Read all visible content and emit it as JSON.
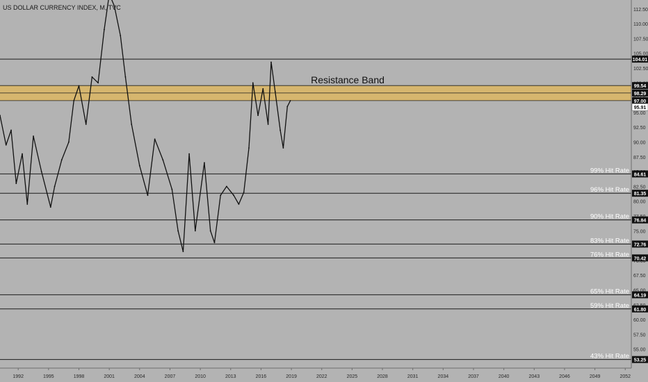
{
  "header": {
    "title": "US DOLLAR CURRENCY INDEX, M, TVC"
  },
  "colors": {
    "background": "#b3b3b3",
    "price": "#111111",
    "band_fill": "#d8b66a",
    "level_line": "#1c1c1c",
    "label_text": "#ffffff",
    "tag_bg": "#111111",
    "tag_text": "#ffffff"
  },
  "chart_data": {
    "type": "line",
    "title": "US DOLLAR CURRENCY INDEX, M, TVC",
    "xlabel": "",
    "ylabel": "",
    "xlim": [
      1990.2,
      2052.6
    ],
    "ylim": [
      51.8,
      114.0
    ],
    "x_ticks": [
      1992,
      1995,
      1998,
      2001,
      2004,
      2007,
      2010,
      2013,
      2016,
      2019,
      2022,
      2025,
      2028,
      2031,
      2034,
      2037,
      2040,
      2043,
      2046,
      2049,
      2052
    ],
    "y_ticks": [
      55.0,
      57.5,
      60.0,
      62.5,
      65.0,
      67.5,
      70.0,
      72.5,
      75.0,
      77.5,
      80.0,
      82.5,
      85.0,
      87.5,
      90.0,
      92.5,
      95.0,
      97.5,
      100.0,
      102.5,
      105.0,
      107.5,
      110.0,
      112.5
    ],
    "current_price": 95.91,
    "resistance_band": {
      "label": "Resistance Band",
      "levels": [
        99.54,
        98.29,
        97.0
      ]
    },
    "levels": [
      {
        "value": 104.01,
        "label": ""
      },
      {
        "value": 84.61,
        "label": "99% Hit Rate"
      },
      {
        "value": 81.35,
        "label": "96% Hit Rate"
      },
      {
        "value": 76.84,
        "label": "90% Hit Rate"
      },
      {
        "value": 72.76,
        "label": "83% Hit Rate"
      },
      {
        "value": 70.42,
        "label": "76% Hit Rate"
      },
      {
        "value": 64.19,
        "label": "65% Hit Rate"
      },
      {
        "value": 61.8,
        "label": "59% Hit Rate"
      },
      {
        "value": 53.25,
        "label": "43% Hit Rate"
      }
    ],
    "series": [
      {
        "values": [
          [
            1990.2,
            94.5
          ],
          [
            1990.8,
            89.5
          ],
          [
            1991.3,
            92.0
          ],
          [
            1991.8,
            83.0
          ],
          [
            1992.4,
            88.0
          ],
          [
            1992.9,
            79.5
          ],
          [
            1993.5,
            91.0
          ],
          [
            1994.3,
            85.0
          ],
          [
            1995.2,
            79.0
          ],
          [
            1995.6,
            82.5
          ],
          [
            1996.3,
            87.0
          ],
          [
            1997.0,
            90.0
          ],
          [
            1997.5,
            97.0
          ],
          [
            1998.0,
            99.5
          ],
          [
            1998.7,
            93.0
          ],
          [
            1999.3,
            101.0
          ],
          [
            1999.9,
            100.0
          ],
          [
            2000.5,
            109.0
          ],
          [
            2001.0,
            115.0
          ],
          [
            2001.5,
            113.0
          ],
          [
            2002.1,
            108.0
          ],
          [
            2002.6,
            101.0
          ],
          [
            2003.2,
            93.0
          ],
          [
            2004.0,
            86.0
          ],
          [
            2004.8,
            81.0
          ],
          [
            2005.5,
            90.5
          ],
          [
            2006.3,
            87.0
          ],
          [
            2007.2,
            82.0
          ],
          [
            2007.8,
            75.0
          ],
          [
            2008.3,
            71.5
          ],
          [
            2008.9,
            88.0
          ],
          [
            2009.5,
            75.0
          ],
          [
            2010.4,
            86.5
          ],
          [
            2011.0,
            75.0
          ],
          [
            2011.4,
            73.0
          ],
          [
            2012.0,
            81.0
          ],
          [
            2012.6,
            82.5
          ],
          [
            2013.3,
            81.0
          ],
          [
            2013.8,
            79.5
          ],
          [
            2014.3,
            81.5
          ],
          [
            2014.8,
            89.0
          ],
          [
            2015.2,
            100.0
          ],
          [
            2015.7,
            94.5
          ],
          [
            2016.2,
            99.0
          ],
          [
            2016.7,
            93.0
          ],
          [
            2017.0,
            103.5
          ],
          [
            2017.4,
            98.5
          ],
          [
            2017.9,
            92.0
          ],
          [
            2018.2,
            89.0
          ],
          [
            2018.6,
            96.0
          ],
          [
            2018.9,
            97.0
          ]
        ]
      }
    ]
  }
}
